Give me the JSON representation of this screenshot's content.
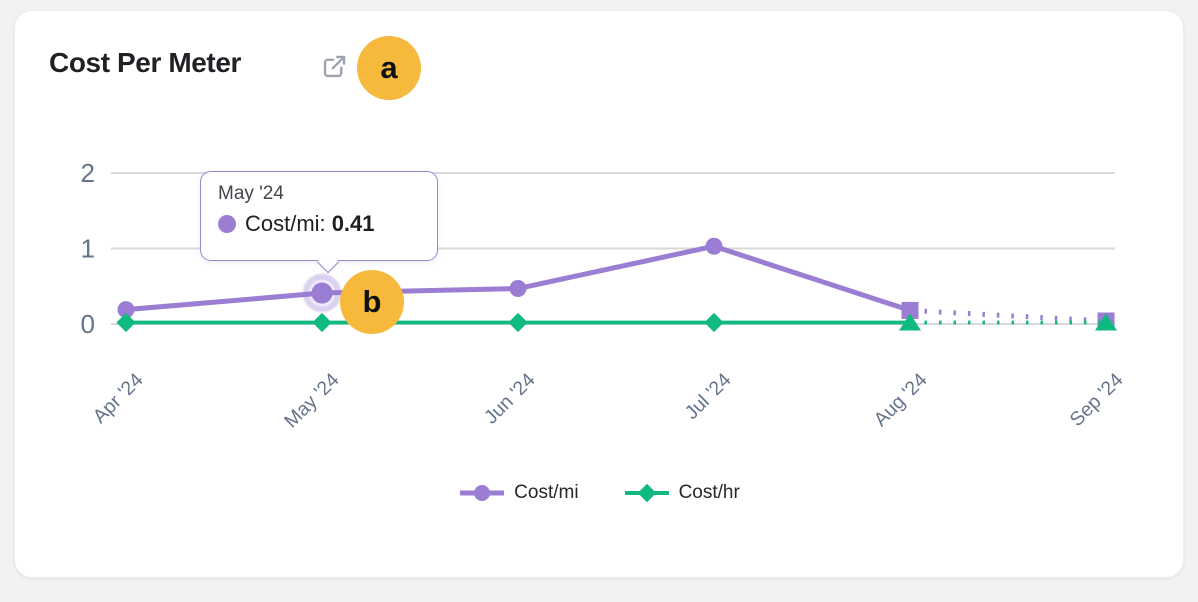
{
  "header": {
    "title": "Cost Per Meter",
    "icon": "external-link"
  },
  "tooltip": {
    "title": "May '24",
    "series_label": "Cost/mi:",
    "value": "0.41"
  },
  "annotations": [
    {
      "label": "a",
      "target": "external-link-icon"
    },
    {
      "label": "b",
      "target": "may-data-point"
    }
  ],
  "legend": {
    "items": [
      {
        "label": "Cost/mi",
        "color": "#9b7ed3",
        "marker": "circle"
      },
      {
        "label": "Cost/hr",
        "color": "#10b981",
        "marker": "diamond"
      }
    ]
  },
  "chart_data": {
    "type": "line",
    "title": "Cost Per Meter",
    "categories": [
      "Apr '24",
      "May '24",
      "Jun '24",
      "Jul '24",
      "Aug '24",
      "Sep '24"
    ],
    "series": [
      {
        "name": "Cost/mi",
        "color": "#9b7ed3",
        "marker": "circle",
        "projected_marker": "square",
        "projected_from_index": 4,
        "values": [
          0.19,
          0.41,
          0.47,
          1.03,
          0.18,
          0.04
        ]
      },
      {
        "name": "Cost/hr",
        "color": "#10b981",
        "marker": "diamond",
        "projected_marker": "triangle",
        "projected_from_index": 4,
        "values": [
          0.02,
          0.02,
          0.02,
          0.02,
          0.02,
          0.02
        ]
      }
    ],
    "yticks": [
      0,
      1,
      2
    ],
    "ylim": [
      0,
      2.2
    ],
    "xlabel": "",
    "ylabel": "",
    "grid": true,
    "legend_position": "bottom",
    "active_point": {
      "series": "Cost/mi",
      "category": "May '24",
      "index": 1,
      "value": 0.41
    },
    "colors": {
      "grid": "#d9d9d9",
      "axis_text": "#64748b",
      "annotation": "#f6b93b"
    }
  }
}
